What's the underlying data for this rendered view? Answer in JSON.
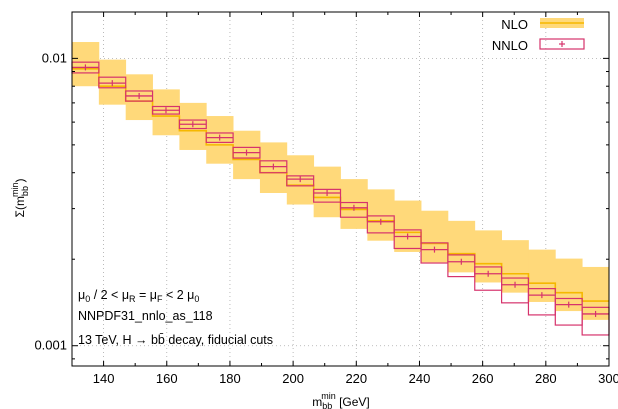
{
  "chart_data": {
    "type": "step-band",
    "xlabel": "m_bb^min [GeV]",
    "ylabel": "Σ(m_bb^min)",
    "xlim": [
      130,
      300
    ],
    "ylim": [
      0.00085,
      0.0145
    ],
    "y_scale": "log",
    "grid": true,
    "legend_position": "top-right",
    "x_ticks": [
      "140",
      "160",
      "180",
      "200",
      "220",
      "240",
      "260",
      "280",
      "300"
    ],
    "y_ticks": [
      "0.01",
      "0.001"
    ],
    "annotations": [
      "μ0 / 2 < μR = μF < 2 μ0",
      "NNPDF31_nnlo_as_118",
      "13 TeV, H → b b̄ decay, fiducial cuts"
    ],
    "bin_width": 8.5,
    "x_bin_starts": [
      130,
      138.5,
      147,
      155.5,
      164,
      172.5,
      181,
      189.5,
      198,
      206.5,
      215,
      223.5,
      232,
      240.5,
      249,
      257.5,
      266,
      274.5,
      283,
      291.5
    ],
    "series": [
      {
        "name": "NLO",
        "color": "#f5b800",
        "band_color": "#ffd97a",
        "central": [
          0.0092,
          0.008,
          0.0071,
          0.0063,
          0.0056,
          0.005,
          0.00445,
          0.004,
          0.00362,
          0.00328,
          0.00298,
          0.00272,
          0.00248,
          0.00227,
          0.00209,
          0.00193,
          0.00178,
          0.00165,
          0.00153,
          0.00143
        ],
        "lower": [
          0.008,
          0.0069,
          0.0061,
          0.0054,
          0.0048,
          0.0043,
          0.0038,
          0.0034,
          0.0031,
          0.0028,
          0.00255,
          0.00232,
          0.00212,
          0.00195,
          0.0018,
          0.00166,
          0.00153,
          0.00142,
          0.00132,
          0.00123
        ],
        "upper": [
          0.0114,
          0.0099,
          0.0088,
          0.0078,
          0.007,
          0.0063,
          0.0056,
          0.0051,
          0.0046,
          0.0042,
          0.0038,
          0.0035,
          0.0032,
          0.00295,
          0.00272,
          0.00252,
          0.00233,
          0.00216,
          0.00201,
          0.00188
        ]
      },
      {
        "name": "NNLO",
        "color": "#d6336c",
        "central": [
          0.0093,
          0.0082,
          0.0074,
          0.0066,
          0.0059,
          0.0053,
          0.0047,
          0.0042,
          0.0038,
          0.0034,
          0.00302,
          0.0027,
          0.0024,
          0.00216,
          0.00196,
          0.00178,
          0.00163,
          0.0015,
          0.00139,
          0.00129
        ],
        "lower": [
          0.0089,
          0.0079,
          0.0071,
          0.0064,
          0.0057,
          0.0051,
          0.0045,
          0.004,
          0.0036,
          0.00316,
          0.0028,
          0.00247,
          0.00218,
          0.00194,
          0.00174,
          0.00156,
          0.00141,
          0.00128,
          0.00118,
          0.00109
        ],
        "upper": [
          0.0097,
          0.0086,
          0.0077,
          0.0068,
          0.0061,
          0.0055,
          0.0049,
          0.0044,
          0.0039,
          0.0035,
          0.00315,
          0.00283,
          0.00253,
          0.00228,
          0.00207,
          0.00188,
          0.00172,
          0.00158,
          0.00146,
          0.00136
        ]
      }
    ]
  }
}
